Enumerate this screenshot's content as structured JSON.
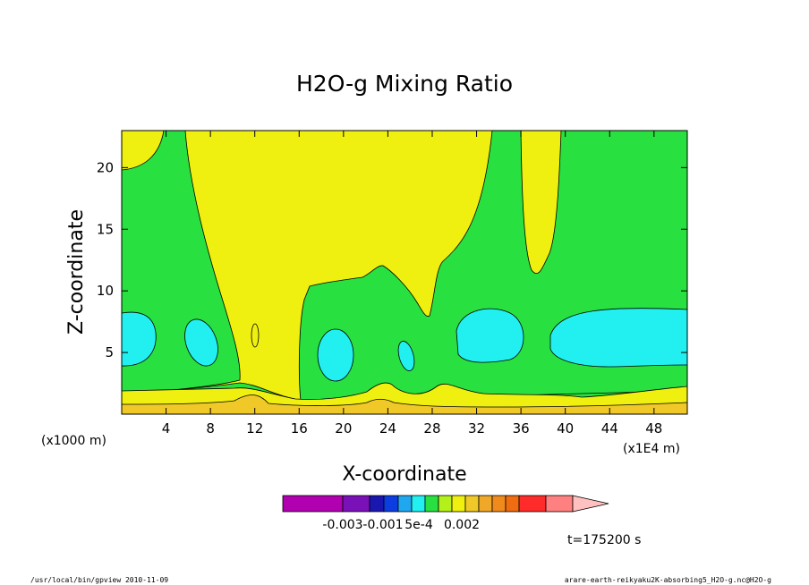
{
  "chart_data": {
    "type": "contour",
    "title": "H2O-g Mixing Ratio",
    "xlabel": "X-coordinate",
    "ylabel": "Z-coordinate",
    "x_unit_left": "(x1000 m)",
    "x_unit_right": "(x1E4 m)",
    "x_ticks": [
      4,
      8,
      12,
      16,
      20,
      24,
      28,
      32,
      36,
      40,
      44,
      48
    ],
    "y_ticks": [
      5,
      10,
      15,
      20
    ],
    "xlim": [
      0,
      51
    ],
    "ylim": [
      0,
      23
    ],
    "time_label": "t=175200 s",
    "colorbar": {
      "colors": [
        "#b000b0",
        "#7a10b8",
        "#1a16b0",
        "#0b3de0",
        "#1fa8f0",
        "#22f0f0",
        "#28e040",
        "#b4f01a",
        "#f0f010",
        "#f0c828",
        "#f0a828",
        "#f08a1c",
        "#f06c10",
        "#ff2a2a",
        "#ff8080",
        "#ffc0c0"
      ],
      "labels": [
        "-0.003",
        "-0.001",
        "5e-4",
        "0.002"
      ]
    }
  },
  "footer": {
    "left": "/usr/local/bin/gpview   2010-11-09",
    "right": "arare-earth-reikyaku2K-absorbing5_H2O-g.nc@H2O-g"
  }
}
